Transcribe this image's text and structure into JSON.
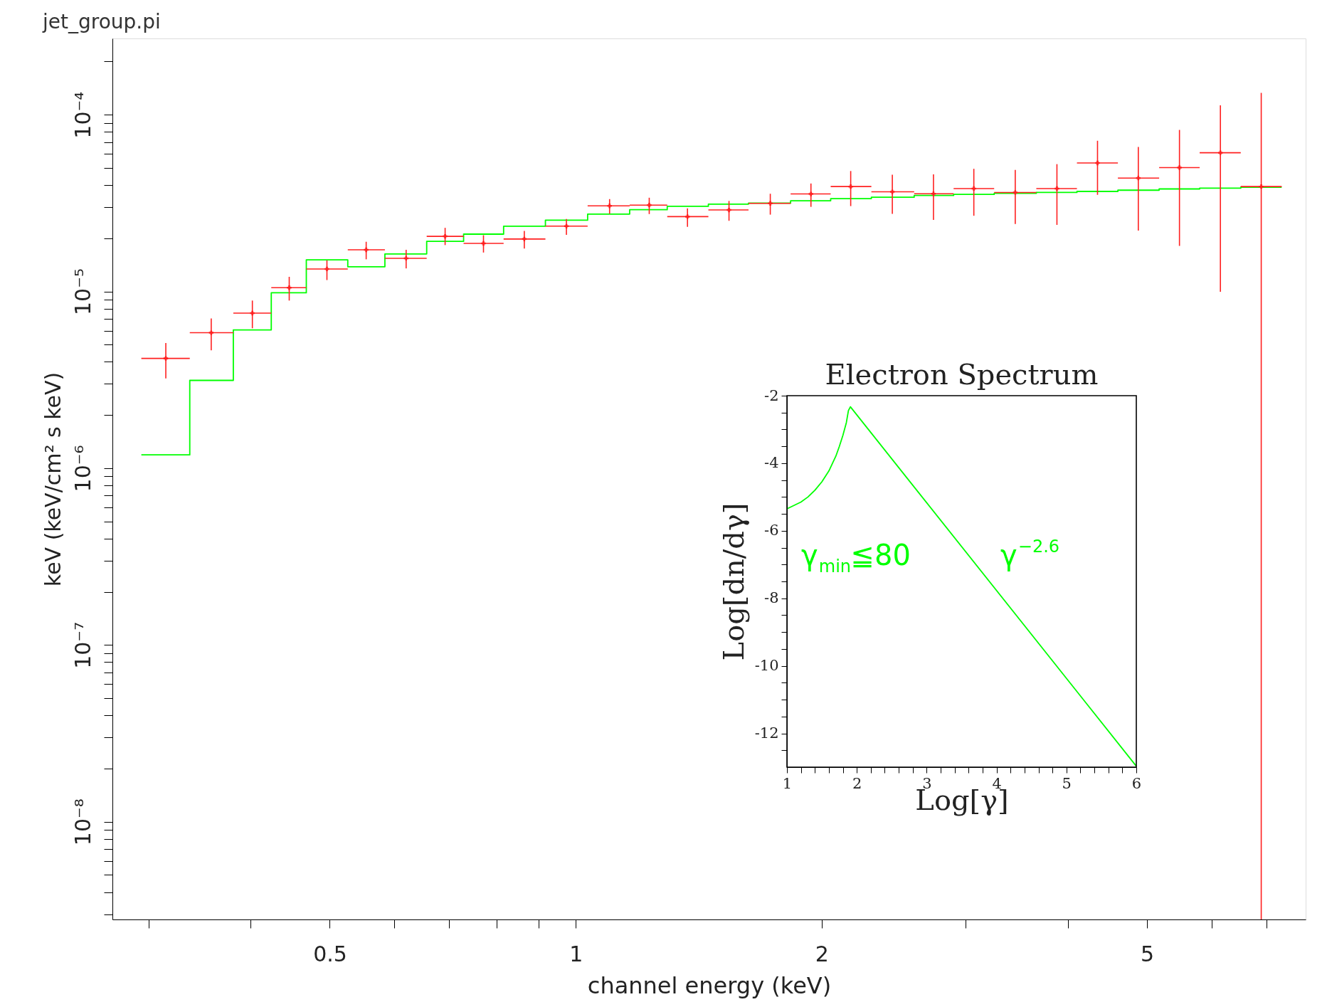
{
  "chart_data": [
    {
      "type": "scatter",
      "title": "jet_group.pi",
      "xlabel": "channel energy (keV)",
      "ylabel": "keV (keV/cm² s keV)",
      "log": "xy",
      "grid": false,
      "xlim": [
        0.271,
        7.82
      ],
      "ylim": [
        2.8e-09,
        0.00027
      ],
      "xticks": [
        {
          "value": 0.3,
          "label": null
        },
        {
          "value": 0.4,
          "label": null
        },
        0.5,
        {
          "value": 0.6,
          "label": null
        },
        {
          "value": 0.7,
          "label": null
        },
        {
          "value": 0.8,
          "label": null
        },
        {
          "value": 0.9,
          "label": null
        },
        1,
        2,
        {
          "value": 3,
          "label": null
        },
        {
          "value": 4,
          "label": null
        },
        5,
        {
          "value": 6,
          "label": null
        },
        {
          "value": 7,
          "label": null
        }
      ],
      "yticks": [
        {
          "value": 3e-09,
          "label": null
        },
        {
          "value": 4e-09,
          "label": null
        },
        {
          "value": 5e-09,
          "label": null
        },
        {
          "value": 6e-09,
          "label": null
        },
        {
          "value": 7e-09,
          "label": null
        },
        {
          "value": 8e-09,
          "label": null
        },
        {
          "value": 9e-09,
          "label": null
        },
        {
          "value": 1e-08,
          "label": "10⁻⁸"
        },
        {
          "value": 2e-08,
          "label": null
        },
        {
          "value": 3e-08,
          "label": null
        },
        {
          "value": 4e-08,
          "label": null
        },
        {
          "value": 5e-08,
          "label": null
        },
        {
          "value": 6e-08,
          "label": null
        },
        {
          "value": 7e-08,
          "label": null
        },
        {
          "value": 8e-08,
          "label": null
        },
        {
          "value": 9e-08,
          "label": null
        },
        {
          "value": 1e-07,
          "label": "10⁻⁷"
        },
        {
          "value": 2e-07,
          "label": null
        },
        {
          "value": 3e-07,
          "label": null
        },
        {
          "value": 4e-07,
          "label": null
        },
        {
          "value": 5e-07,
          "label": null
        },
        {
          "value": 6e-07,
          "label": null
        },
        {
          "value": 7e-07,
          "label": null
        },
        {
          "value": 8e-07,
          "label": null
        },
        {
          "value": 9e-07,
          "label": null
        },
        {
          "value": 1e-06,
          "label": "10⁻⁶"
        },
        {
          "value": 2e-06,
          "label": null
        },
        {
          "value": 3e-06,
          "label": null
        },
        {
          "value": 4e-06,
          "label": null
        },
        {
          "value": 5e-06,
          "label": null
        },
        {
          "value": 6e-06,
          "label": null
        },
        {
          "value": 7e-06,
          "label": null
        },
        {
          "value": 8e-06,
          "label": null
        },
        {
          "value": 9e-06,
          "label": null
        },
        {
          "value": 1e-05,
          "label": "10⁻⁵"
        },
        {
          "value": 2e-05,
          "label": null
        },
        {
          "value": 3e-05,
          "label": null
        },
        {
          "value": 4e-05,
          "label": null
        },
        {
          "value": 5e-05,
          "label": null
        },
        {
          "value": 6e-05,
          "label": null
        },
        {
          "value": 7e-05,
          "label": null
        },
        {
          "value": 8e-05,
          "label": null
        },
        {
          "value": 9e-05,
          "label": null
        },
        {
          "value": 0.0001,
          "label": "10⁻⁴"
        },
        {
          "value": 0.0002,
          "label": null
        }
      ],
      "series": [
        {
          "type": "scatter",
          "color": "#ff2020",
          "marker": "cross",
          "x": [
            0.315,
            0.358,
            0.402,
            0.446,
            0.496,
            0.554,
            0.62,
            0.692,
            0.771,
            0.865,
            0.974,
            1.1,
            1.23,
            1.37,
            1.54,
            1.73,
            1.94,
            2.17,
            2.44,
            2.74,
            3.07,
            3.45,
            3.88,
            4.35,
            4.88,
            5.48,
            6.15,
            6.9
          ],
          "values": [
            4.18e-06,
            5.84e-06,
            7.54e-06,
            1.05e-05,
            1.34e-05,
            1.72e-05,
            1.54e-05,
            2.05e-05,
            1.87e-05,
            1.98e-05,
            2.34e-05,
            3.05e-05,
            3.08e-05,
            2.65e-05,
            2.89e-05,
            3.15e-05,
            3.56e-05,
            3.92e-05,
            3.66e-05,
            3.57e-05,
            3.82e-05,
            3.63e-05,
            3.82e-05,
            5.33e-05,
            4.38e-05,
            5.02e-05,
            6.09e-05,
            3.92e-05
          ],
          "errors": [
            [
              3.22e-06,
              5.11e-06
            ],
            [
              4.65e-06,
              7.04e-06
            ],
            [
              6.19e-06,
              8.88e-06
            ],
            [
              8.88e-06,
              1.21e-05
            ],
            [
              1.16e-05,
              1.5e-05
            ],
            [
              1.52e-05,
              1.91e-05
            ],
            [
              1.35e-05,
              1.72e-05
            ],
            [
              1.83e-05,
              2.29e-05
            ],
            [
              1.66e-05,
              2.08e-05
            ],
            [
              1.75e-05,
              2.2e-05
            ],
            [
              2.09e-05,
              2.57e-05
            ],
            [
              2.75e-05,
              3.33e-05
            ],
            [
              2.74e-05,
              3.39e-05
            ],
            [
              2.32e-05,
              2.95e-05
            ],
            [
              2.51e-05,
              3.25e-05
            ],
            [
              2.72e-05,
              3.57e-05
            ],
            [
              3.01e-05,
              4.08e-05
            ],
            [
              3.04e-05,
              4.8e-05
            ],
            [
              2.75e-05,
              4.58e-05
            ],
            [
              2.54e-05,
              4.6e-05
            ],
            [
              2.68e-05,
              4.94e-05
            ],
            [
              2.41e-05,
              4.87e-05
            ],
            [
              2.38e-05,
              5.25e-05
            ],
            [
              3.52e-05,
              7.12e-05
            ],
            [
              2.21e-05,
              6.57e-05
            ],
            [
              1.81e-05,
              8.2e-05
            ],
            [
              9.95e-06,
              0.000113
            ],
            [
              2.8e-09,
              0.000133
            ]
          ],
          "xerrors": [
            [
              0.294,
              0.337
            ],
            [
              0.337,
              0.381
            ],
            [
              0.381,
              0.424
            ],
            [
              0.424,
              0.468
            ],
            [
              0.468,
              0.526
            ],
            [
              0.526,
              0.584
            ],
            [
              0.584,
              0.657
            ],
            [
              0.657,
              0.729
            ],
            [
              0.729,
              0.816
            ],
            [
              0.816,
              0.918
            ],
            [
              0.918,
              1.034
            ],
            [
              1.034,
              1.164
            ],
            [
              1.164,
              1.294
            ],
            [
              1.294,
              1.453
            ],
            [
              1.453,
              1.627
            ],
            [
              1.627,
              1.832
            ],
            [
              1.832,
              2.051
            ],
            [
              2.051,
              2.3
            ],
            [
              2.3,
              2.595
            ],
            [
              2.595,
              2.9
            ],
            [
              2.9,
              3.251
            ],
            [
              3.251,
              3.661
            ],
            [
              3.661,
              4.105
            ],
            [
              4.105,
              4.607
            ],
            [
              4.607,
              5.175
            ],
            [
              5.175,
              5.801
            ],
            [
              5.801,
              6.513
            ],
            [
              6.513,
              7.309
            ]
          ]
        },
        {
          "type": "step",
          "color": "#00ff00",
          "x": [
            0.294,
            0.337,
            0.381,
            0.424,
            0.468,
            0.526,
            0.584,
            0.657,
            0.729,
            0.816,
            0.918,
            1.034,
            1.164,
            1.294,
            1.453,
            1.627,
            1.832,
            2.051,
            2.3,
            2.595,
            2.9,
            3.251,
            3.661,
            4.105,
            4.607,
            5.175,
            5.801,
            6.513,
            7.309
          ],
          "values": [
            1.19e-06,
            3.14e-06,
            6.06e-06,
            9.83e-06,
            1.51e-05,
            1.38e-05,
            1.63e-05,
            1.92e-05,
            2.11e-05,
            2.34e-05,
            2.53e-05,
            2.74e-05,
            2.9e-05,
            3.03e-05,
            3.12e-05,
            3.16e-05,
            3.26e-05,
            3.35e-05,
            3.41e-05,
            3.49e-05,
            3.54e-05,
            3.59e-05,
            3.63e-05,
            3.68e-05,
            3.74e-05,
            3.8e-05,
            3.84e-05,
            3.89e-05,
            3.89e-05
          ]
        }
      ]
    },
    {
      "type": "line",
      "title": "Electron Spectrum",
      "xlabel": "Log[γ]",
      "ylabel": "Log[dn/dγ]",
      "grid": false,
      "color": "#00ff00",
      "xlim": [
        1,
        6
      ],
      "ylim": [
        -13,
        -2
      ],
      "xticks": [
        1,
        {
          "value": 1.2,
          "label": null
        },
        {
          "value": 1.4,
          "label": null
        },
        {
          "value": 1.6,
          "label": null
        },
        {
          "value": 1.8,
          "label": null
        },
        2,
        {
          "value": 2.2,
          "label": null
        },
        {
          "value": 2.4,
          "label": null
        },
        {
          "value": 2.6,
          "label": null
        },
        {
          "value": 2.8,
          "label": null
        },
        3,
        {
          "value": 3.2,
          "label": null
        },
        {
          "value": 3.4,
          "label": null
        },
        {
          "value": 3.6,
          "label": null
        },
        {
          "value": 3.8,
          "label": null
        },
        4,
        {
          "value": 4.2,
          "label": null
        },
        {
          "value": 4.4,
          "label": null
        },
        {
          "value": 4.6,
          "label": null
        },
        {
          "value": 4.8,
          "label": null
        },
        5,
        {
          "value": 5.2,
          "label": null
        },
        {
          "value": 5.4,
          "label": null
        },
        {
          "value": 5.6,
          "label": null
        },
        {
          "value": 5.8,
          "label": null
        },
        6
      ],
      "yticks": [
        -2,
        {
          "value": -2.5,
          "label": null
        },
        {
          "value": -3,
          "label": null
        },
        {
          "value": -3.5,
          "label": null
        },
        -4,
        {
          "value": -4.5,
          "label": null
        },
        {
          "value": -5,
          "label": null
        },
        {
          "value": -5.5,
          "label": null
        },
        -6,
        {
          "value": -6.5,
          "label": null
        },
        {
          "value": -7,
          "label": null
        },
        {
          "value": -7.5,
          "label": null
        },
        -8,
        {
          "value": -8.5,
          "label": null
        },
        {
          "value": -9,
          "label": null
        },
        {
          "value": -9.5,
          "label": null
        },
        -10,
        {
          "value": -10.5,
          "label": null
        },
        {
          "value": -11,
          "label": null
        },
        {
          "value": -11.5,
          "label": null
        },
        -12,
        {
          "value": -12.5,
          "label": null
        }
      ],
      "x": [
        1,
        1.1,
        1.2,
        1.3,
        1.4,
        1.5,
        1.6,
        1.7,
        1.75,
        1.8,
        1.85,
        1.88,
        1.908,
        6
      ],
      "values": [
        -5.35,
        -5.25,
        -5.15,
        -5.0,
        -4.8,
        -4.55,
        -4.23,
        -3.79,
        -3.5,
        -3.18,
        -2.8,
        -2.44,
        -2.33,
        -12.97
      ],
      "annotations": [
        "γ$_{min}$≦80",
        "γ$^{−2.6}$"
      ]
    }
  ]
}
